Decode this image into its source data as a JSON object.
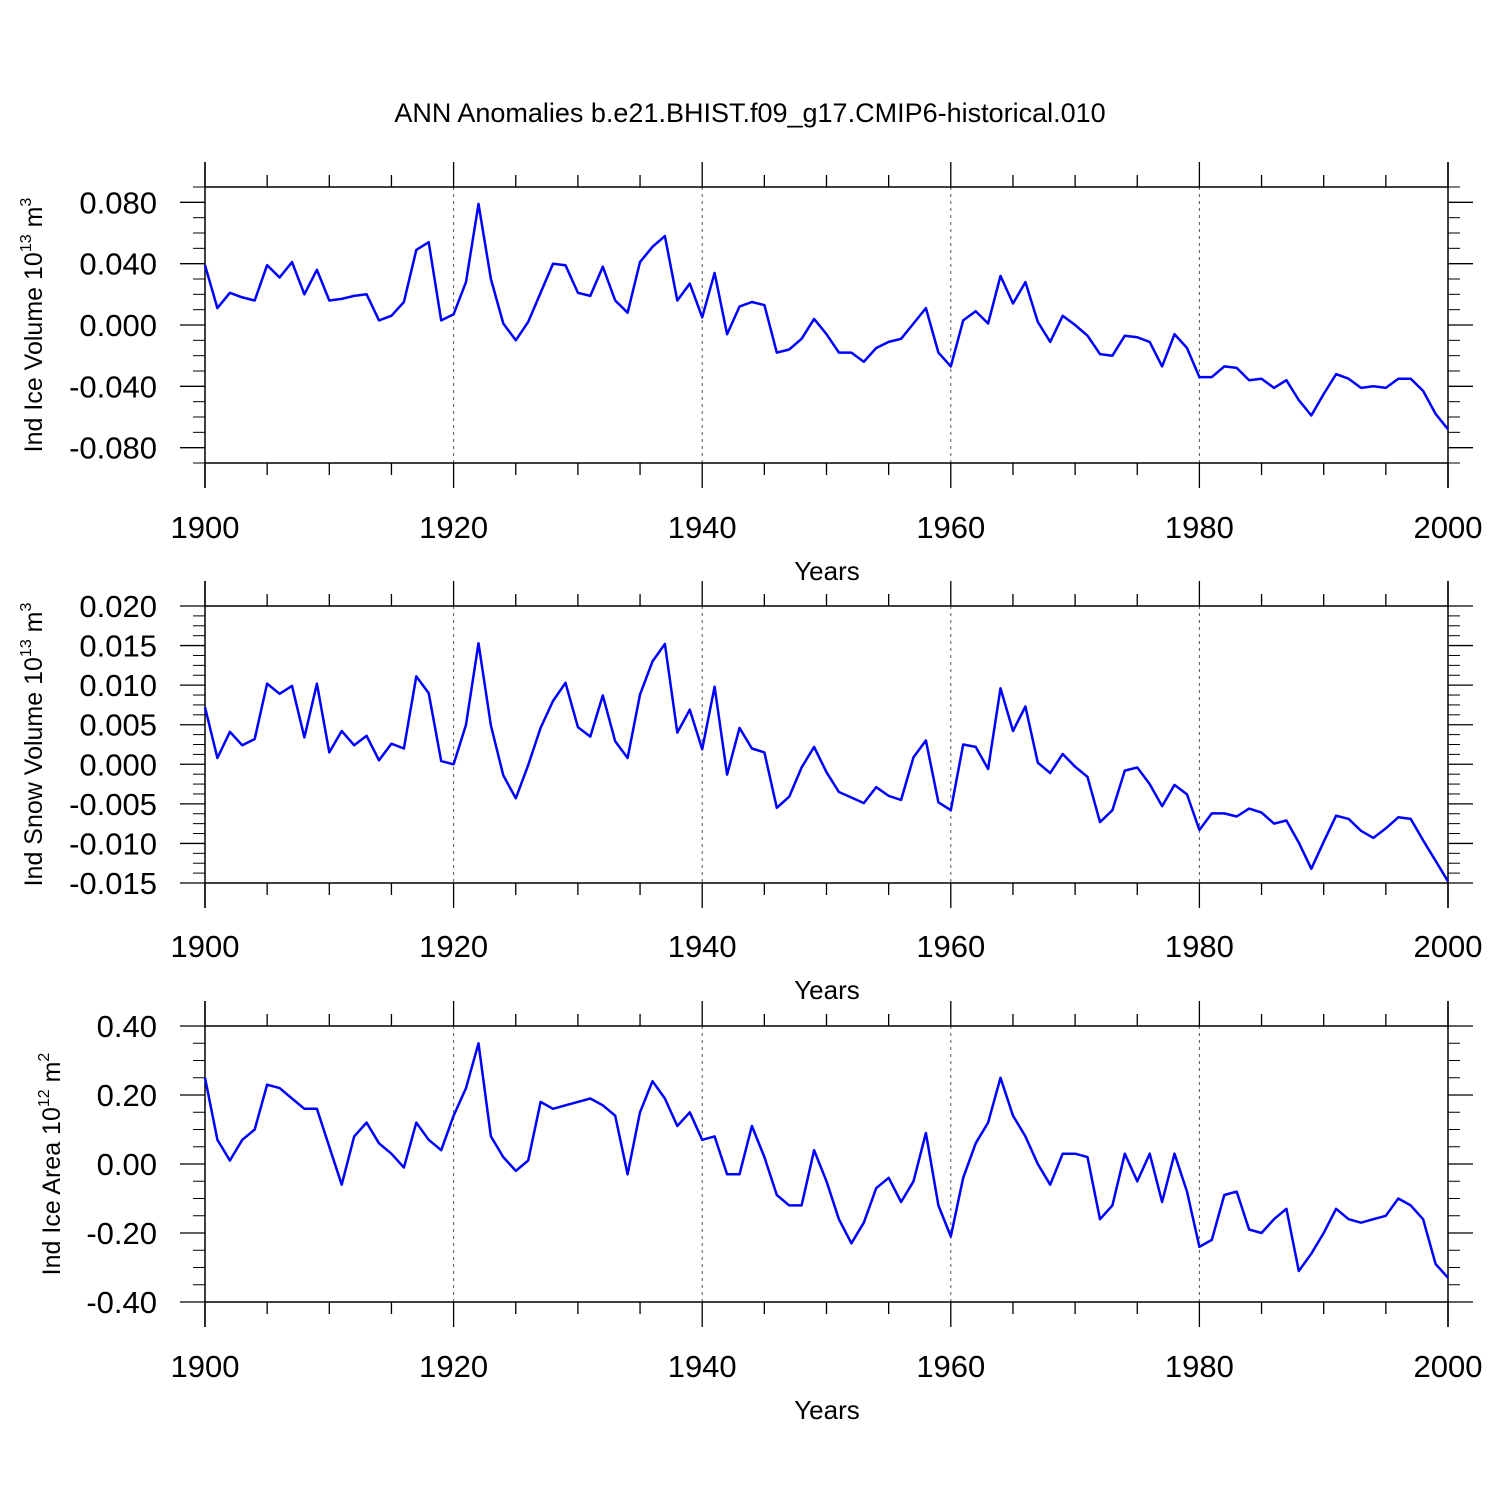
{
  "title": "ANN Anomalies b.e21.BHIST.f09_g17.CMIP6-historical.010",
  "line_color": "#0000ff",
  "chart_data": [
    {
      "type": "line",
      "title": "ANN Anomalies b.e21.BHIST.f09_g17.CMIP6-historical.010",
      "xlabel": "Years",
      "ylabel": "Ind Ice Volume 10",
      "ylabel_exp": "13",
      "ylabel_unit": " m",
      "ylabel_unit_exp": "3",
      "xlim": [
        1900,
        2000
      ],
      "ylim": [
        -0.09,
        0.09
      ],
      "xticks": [
        1900,
        1920,
        1940,
        1960,
        1980,
        2000
      ],
      "xtick_labels": [
        "1900",
        "1920",
        "1940",
        "1960",
        "1980",
        "2000"
      ],
      "yticks": [
        0.08,
        0.04,
        0.0,
        -0.04,
        -0.08
      ],
      "ytick_labels": [
        "0.080",
        "0.040",
        "0.000",
        "-0.040",
        "-0.080"
      ],
      "grid": "dashed vertical at 1920, 1940, 1960, 1980",
      "x": [
        1900,
        1901,
        1902,
        1903,
        1904,
        1905,
        1906,
        1907,
        1908,
        1909,
        1910,
        1911,
        1912,
        1913,
        1914,
        1915,
        1916,
        1917,
        1918,
        1919,
        1920,
        1921,
        1922,
        1923,
        1924,
        1925,
        1926,
        1927,
        1928,
        1929,
        1930,
        1931,
        1932,
        1933,
        1934,
        1935,
        1936,
        1937,
        1938,
        1939,
        1940,
        1941,
        1942,
        1943,
        1944,
        1945,
        1946,
        1947,
        1948,
        1949,
        1950,
        1951,
        1952,
        1953,
        1954,
        1955,
        1956,
        1957,
        1958,
        1959,
        1960,
        1961,
        1962,
        1963,
        1964,
        1965,
        1966,
        1967,
        1968,
        1969,
        1970,
        1971,
        1972,
        1973,
        1974,
        1975,
        1976,
        1977,
        1978,
        1979,
        1980,
        1981,
        1982,
        1983,
        1984,
        1985,
        1986,
        1987,
        1988,
        1989,
        1990,
        1991,
        1992,
        1993,
        1994,
        1995,
        1996,
        1997,
        1998,
        1999,
        2000
      ],
      "series": [
        {
          "name": "Ind Ice Volume",
          "values": [
            0.039,
            0.011,
            0.021,
            0.018,
            0.016,
            0.039,
            0.031,
            0.041,
            0.02,
            0.036,
            0.016,
            0.017,
            0.019,
            0.02,
            0.003,
            0.006,
            0.015,
            0.049,
            0.054,
            0.003,
            0.007,
            0.028,
            0.079,
            0.03,
            0.001,
            -0.01,
            0.002,
            0.021,
            0.04,
            0.039,
            0.021,
            0.019,
            0.038,
            0.016,
            0.008,
            0.041,
            0.051,
            0.058,
            0.016,
            0.027,
            0.005,
            0.034,
            -0.006,
            0.012,
            0.015,
            0.013,
            -0.018,
            -0.016,
            -0.009,
            0.004,
            -0.006,
            -0.018,
            -0.018,
            -0.024,
            -0.015,
            -0.011,
            -0.009,
            0.001,
            0.011,
            -0.018,
            -0.027,
            0.003,
            0.009,
            0.001,
            0.032,
            0.014,
            0.028,
            0.002,
            -0.011,
            0.006,
            0.0,
            -0.007,
            -0.019,
            -0.02,
            -0.007,
            -0.008,
            -0.011,
            -0.027,
            -0.006,
            -0.015,
            -0.034,
            -0.034,
            -0.027,
            -0.028,
            -0.036,
            -0.035,
            -0.041,
            -0.036,
            -0.049,
            -0.059,
            -0.045,
            -0.032,
            -0.035,
            -0.041,
            -0.04,
            -0.041,
            -0.035,
            -0.035,
            -0.043,
            -0.058,
            -0.068
          ]
        }
      ]
    },
    {
      "type": "line",
      "xlabel": "Years",
      "ylabel": "Ind Snow Volume 10",
      "ylabel_exp": "13",
      "ylabel_unit": " m",
      "ylabel_unit_exp": "3",
      "xlim": [
        1900,
        2000
      ],
      "ylim": [
        -0.015,
        0.02
      ],
      "xticks": [
        1900,
        1920,
        1940,
        1960,
        1980,
        2000
      ],
      "xtick_labels": [
        "1900",
        "1920",
        "1940",
        "1960",
        "1980",
        "2000"
      ],
      "yticks": [
        0.02,
        0.015,
        0.01,
        0.005,
        0.0,
        -0.005,
        -0.01,
        -0.015
      ],
      "ytick_labels": [
        "0.020",
        "0.015",
        "0.010",
        "0.005",
        "0.000",
        "-0.005",
        "-0.010",
        "-0.015"
      ],
      "grid": "dashed vertical at 1920, 1940, 1960, 1980",
      "x": [
        1900,
        1901,
        1902,
        1903,
        1904,
        1905,
        1906,
        1907,
        1908,
        1909,
        1910,
        1911,
        1912,
        1913,
        1914,
        1915,
        1916,
        1917,
        1918,
        1919,
        1920,
        1921,
        1922,
        1923,
        1924,
        1925,
        1926,
        1927,
        1928,
        1929,
        1930,
        1931,
        1932,
        1933,
        1934,
        1935,
        1936,
        1937,
        1938,
        1939,
        1940,
        1941,
        1942,
        1943,
        1944,
        1945,
        1946,
        1947,
        1948,
        1949,
        1950,
        1951,
        1952,
        1953,
        1954,
        1955,
        1956,
        1957,
        1958,
        1959,
        1960,
        1961,
        1962,
        1963,
        1964,
        1965,
        1966,
        1967,
        1968,
        1969,
        1970,
        1971,
        1972,
        1973,
        1974,
        1975,
        1976,
        1977,
        1978,
        1979,
        1980,
        1981,
        1982,
        1983,
        1984,
        1985,
        1986,
        1987,
        1988,
        1989,
        1990,
        1991,
        1992,
        1993,
        1994,
        1995,
        1996,
        1997,
        1998,
        1999,
        2000
      ],
      "series": [
        {
          "name": "Ind Snow Volume",
          "values": [
            0.0072,
            0.0008,
            0.0041,
            0.0024,
            0.0032,
            0.0102,
            0.0089,
            0.0099,
            0.0034,
            0.0102,
            0.0015,
            0.0042,
            0.0024,
            0.0036,
            0.0005,
            0.0026,
            0.002,
            0.0111,
            0.009,
            0.0004,
            0.0,
            0.005,
            0.0153,
            0.0049,
            -0.0014,
            -0.0043,
            -0.0001,
            0.0046,
            0.008,
            0.0103,
            0.0047,
            0.0035,
            0.0087,
            0.0029,
            0.0008,
            0.0088,
            0.013,
            0.0152,
            0.004,
            0.0069,
            0.0019,
            0.0098,
            -0.0013,
            0.0046,
            0.002,
            0.0015,
            -0.0055,
            -0.0041,
            -0.0004,
            0.0022,
            -0.001,
            -0.0035,
            -0.0042,
            -0.0049,
            -0.0029,
            -0.004,
            -0.0045,
            0.0009,
            0.003,
            -0.0048,
            -0.0058,
            0.0025,
            0.0022,
            -0.0006,
            0.0096,
            0.0042,
            0.0073,
            0.0002,
            -0.0011,
            0.0013,
            -0.0003,
            -0.0016,
            -0.0073,
            -0.0058,
            -0.0008,
            -0.0004,
            -0.0025,
            -0.0053,
            -0.0026,
            -0.0038,
            -0.0083,
            -0.0062,
            -0.0062,
            -0.0066,
            -0.0056,
            -0.0061,
            -0.0075,
            -0.0071,
            -0.0099,
            -0.0132,
            -0.0098,
            -0.0065,
            -0.0069,
            -0.0084,
            -0.0093,
            -0.0081,
            -0.0067,
            -0.0069,
            -0.0096,
            -0.0122,
            -0.0148
          ]
        }
      ]
    },
    {
      "type": "line",
      "xlabel": "Years",
      "ylabel": "Ind Ice Area 10",
      "ylabel_exp": "12",
      "ylabel_unit": " m",
      "ylabel_unit_exp": "2",
      "xlim": [
        1900,
        2000
      ],
      "ylim": [
        -0.4,
        0.4
      ],
      "xticks": [
        1900,
        1920,
        1940,
        1960,
        1980,
        2000
      ],
      "xtick_labels": [
        "1900",
        "1920",
        "1940",
        "1960",
        "1980",
        "2000"
      ],
      "yticks": [
        0.4,
        0.2,
        0.0,
        -0.2,
        -0.4
      ],
      "ytick_labels": [
        "0.40",
        "0.20",
        "0.00",
        "-0.20",
        "-0.40"
      ],
      "grid": "dashed vertical at 1920, 1940, 1960, 1980",
      "x": [
        1900,
        1901,
        1902,
        1903,
        1904,
        1905,
        1906,
        1907,
        1908,
        1909,
        1910,
        1911,
        1912,
        1913,
        1914,
        1915,
        1916,
        1917,
        1918,
        1919,
        1920,
        1921,
        1922,
        1923,
        1924,
        1925,
        1926,
        1927,
        1928,
        1929,
        1930,
        1931,
        1932,
        1933,
        1934,
        1935,
        1936,
        1937,
        1938,
        1939,
        1940,
        1941,
        1942,
        1943,
        1944,
        1945,
        1946,
        1947,
        1948,
        1949,
        1950,
        1951,
        1952,
        1953,
        1954,
        1955,
        1956,
        1957,
        1958,
        1959,
        1960,
        1961,
        1962,
        1963,
        1964,
        1965,
        1966,
        1967,
        1968,
        1969,
        1970,
        1971,
        1972,
        1973,
        1974,
        1975,
        1976,
        1977,
        1978,
        1979,
        1980,
        1981,
        1982,
        1983,
        1984,
        1985,
        1986,
        1987,
        1988,
        1989,
        1990,
        1991,
        1992,
        1993,
        1994,
        1995,
        1996,
        1997,
        1998,
        1999,
        2000
      ],
      "series": [
        {
          "name": "Ind Ice Area",
          "values": [
            0.25,
            0.07,
            0.01,
            0.07,
            0.1,
            0.23,
            0.22,
            0.19,
            0.16,
            0.16,
            0.05,
            -0.06,
            0.08,
            0.12,
            0.06,
            0.03,
            -0.01,
            0.12,
            0.07,
            0.04,
            0.14,
            0.22,
            0.35,
            0.08,
            0.02,
            -0.02,
            0.01,
            0.18,
            0.16,
            0.17,
            0.18,
            0.19,
            0.17,
            0.14,
            -0.03,
            0.15,
            0.24,
            0.19,
            0.11,
            0.15,
            0.07,
            0.08,
            -0.03,
            -0.03,
            0.11,
            0.02,
            -0.09,
            -0.12,
            -0.12,
            0.04,
            -0.05,
            -0.16,
            -0.23,
            -0.17,
            -0.07,
            -0.04,
            -0.11,
            -0.05,
            0.09,
            -0.12,
            -0.21,
            -0.04,
            0.06,
            0.12,
            0.25,
            0.14,
            0.08,
            0.0,
            -0.06,
            0.03,
            0.03,
            0.02,
            -0.16,
            -0.12,
            0.03,
            -0.05,
            0.03,
            -0.11,
            0.03,
            -0.08,
            -0.24,
            -0.22,
            -0.09,
            -0.08,
            -0.19,
            -0.2,
            -0.16,
            -0.13,
            -0.31,
            -0.26,
            -0.2,
            -0.13,
            -0.16,
            -0.17,
            -0.16,
            -0.15,
            -0.1,
            -0.12,
            -0.16,
            -0.29,
            -0.33
          ]
        }
      ]
    }
  ]
}
